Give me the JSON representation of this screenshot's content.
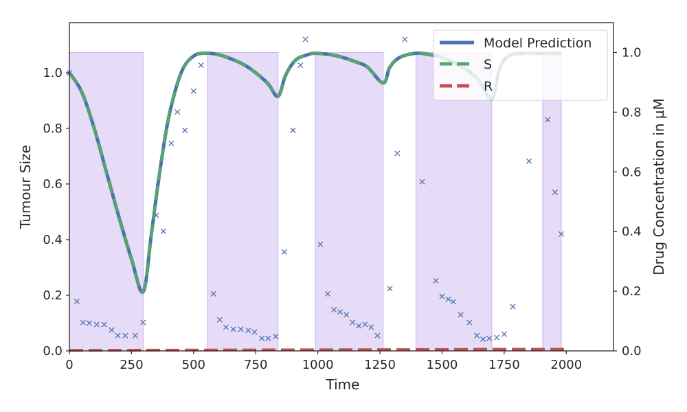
{
  "chart_data": {
    "type": "line",
    "xlabel": "Time",
    "ylabel": "Tumour Size",
    "y2label": "Drug Concentration in μM",
    "xlim": [
      0,
      2190
    ],
    "ylim": [
      0,
      1.18
    ],
    "y2lim": [
      0,
      1.1
    ],
    "x_ticks": [
      0,
      250,
      500,
      750,
      1000,
      1250,
      1500,
      1750,
      2000
    ],
    "y_ticks": [
      0.0,
      0.2,
      0.4,
      0.6,
      0.8,
      1.0
    ],
    "y2_ticks": [
      0.0,
      0.2,
      0.4,
      0.6,
      0.8,
      1.0
    ],
    "legend_position": "top-right",
    "colors": {
      "model": "#4c72b0",
      "s": "#55a868",
      "r": "#c44e52",
      "markers": "#4c72b0",
      "drug_fill": "#e6dcf7",
      "drug_edge": "#c8b4ee"
    },
    "series": [
      {
        "name": "Model Prediction",
        "style": "solid"
      },
      {
        "name": "S",
        "style": "dashed"
      },
      {
        "name": "R",
        "style": "dashed"
      }
    ],
    "model_knots": [
      [
        0,
        1.0
      ],
      [
        50,
        0.93
      ],
      [
        100,
        0.8
      ],
      [
        150,
        0.64
      ],
      [
        200,
        0.48
      ],
      [
        250,
        0.33
      ],
      [
        297,
        0.212
      ],
      [
        330,
        0.42
      ],
      [
        360,
        0.62
      ],
      [
        400,
        0.84
      ],
      [
        450,
        1.0
      ],
      [
        500,
        1.06
      ],
      [
        550,
        1.07
      ],
      [
        600,
        1.065
      ],
      [
        650,
        1.05
      ],
      [
        700,
        1.03
      ],
      [
        750,
        1.0
      ],
      [
        800,
        0.96
      ],
      [
        840,
        0.915
      ],
      [
        870,
        0.99
      ],
      [
        910,
        1.045
      ],
      [
        960,
        1.065
      ],
      [
        990,
        1.07
      ],
      [
        1050,
        1.065
      ],
      [
        1100,
        1.055
      ],
      [
        1150,
        1.04
      ],
      [
        1200,
        1.02
      ],
      [
        1263,
        0.963
      ],
      [
        1290,
        1.02
      ],
      [
        1330,
        1.055
      ],
      [
        1395,
        1.07
      ],
      [
        1450,
        1.065
      ],
      [
        1500,
        1.055
      ],
      [
        1550,
        1.035
      ],
      [
        1600,
        1.01
      ],
      [
        1650,
        0.97
      ],
      [
        1700,
        0.905
      ],
      [
        1730,
        1.01
      ],
      [
        1760,
        1.055
      ],
      [
        1800,
        1.068
      ],
      [
        1900,
        1.07
      ],
      [
        1980,
        1.07
      ]
    ],
    "r_knots": [
      [
        0,
        0.002
      ],
      [
        500,
        0.003
      ],
      [
        1000,
        0.004
      ],
      [
        1500,
        0.005
      ],
      [
        1750,
        0.006
      ],
      [
        2000,
        0.006
      ]
    ],
    "drug_on_intervals": [
      [
        0,
        297
      ],
      [
        555,
        840
      ],
      [
        990,
        1263
      ],
      [
        1395,
        1700
      ],
      [
        1905,
        1980
      ]
    ],
    "drug_dose_level": 1.0,
    "observations": [
      [
        0,
        1.0
      ],
      [
        30,
        0.178
      ],
      [
        55,
        0.102
      ],
      [
        80,
        0.1
      ],
      [
        110,
        0.095
      ],
      [
        140,
        0.095
      ],
      [
        170,
        0.075
      ],
      [
        195,
        0.055
      ],
      [
        225,
        0.055
      ],
      [
        265,
        0.055
      ],
      [
        297,
        0.102
      ],
      [
        350,
        0.487
      ],
      [
        378,
        0.43
      ],
      [
        410,
        0.746
      ],
      [
        435,
        0.859
      ],
      [
        465,
        0.793
      ],
      [
        500,
        0.934
      ],
      [
        530,
        1.027
      ],
      [
        580,
        0.205
      ],
      [
        605,
        0.112
      ],
      [
        630,
        0.085
      ],
      [
        660,
        0.078
      ],
      [
        690,
        0.078
      ],
      [
        720,
        0.074
      ],
      [
        745,
        0.068
      ],
      [
        775,
        0.045
      ],
      [
        800,
        0.045
      ],
      [
        830,
        0.052
      ],
      [
        865,
        0.356
      ],
      [
        900,
        0.793
      ],
      [
        930,
        1.027
      ],
      [
        950,
        1.12
      ],
      [
        1010,
        0.383
      ],
      [
        1040,
        0.205
      ],
      [
        1065,
        0.148
      ],
      [
        1090,
        0.14
      ],
      [
        1115,
        0.13
      ],
      [
        1140,
        0.102
      ],
      [
        1165,
        0.09
      ],
      [
        1190,
        0.095
      ],
      [
        1215,
        0.085
      ],
      [
        1240,
        0.055
      ],
      [
        1290,
        0.224
      ],
      [
        1320,
        0.71
      ],
      [
        1350,
        1.12
      ],
      [
        1420,
        0.608
      ],
      [
        1475,
        0.252
      ],
      [
        1500,
        0.196
      ],
      [
        1525,
        0.186
      ],
      [
        1545,
        0.177
      ],
      [
        1575,
        0.13
      ],
      [
        1610,
        0.102
      ],
      [
        1640,
        0.055
      ],
      [
        1665,
        0.042
      ],
      [
        1690,
        0.045
      ],
      [
        1720,
        0.048
      ],
      [
        1750,
        0.06
      ],
      [
        1785,
        0.159
      ],
      [
        1850,
        0.682
      ],
      [
        1925,
        0.831
      ],
      [
        1955,
        0.57
      ],
      [
        1980,
        0.42
      ]
    ]
  }
}
